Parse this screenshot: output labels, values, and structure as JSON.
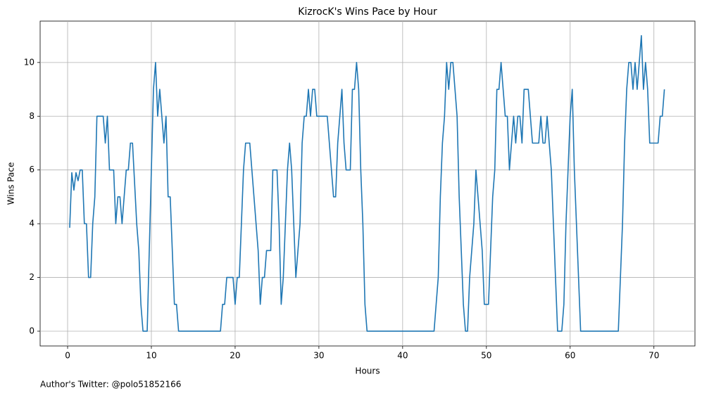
{
  "chart_data": {
    "type": "line",
    "title": "KizrocK's Wins Pace by Hour",
    "x_label": "Hours",
    "y_label": "Wins Pace",
    "caption": "Author's Twitter: @polo51852166",
    "xlim": [
      -3.28,
      74.9
    ],
    "ylim": [
      -0.55,
      11.54
    ],
    "xticks": [
      0,
      10,
      20,
      30,
      40,
      50,
      60,
      70
    ],
    "yticks": [
      0,
      2,
      4,
      6,
      8,
      10
    ],
    "grid": true,
    "series": [
      {
        "color": "#1f77b4",
        "x": [
          0.25,
          0.5,
          0.75,
          1.0,
          1.25,
          1.5,
          1.75,
          2.0,
          2.25,
          2.5,
          2.75,
          3.0,
          3.25,
          3.5,
          4.25,
          4.5,
          4.75,
          5.0,
          5.5,
          5.75,
          6.0,
          6.25,
          6.5,
          6.75,
          7.0,
          7.25,
          7.5,
          7.75,
          8.25,
          8.5,
          8.75,
          9.0,
          9.5,
          9.75,
          10.0,
          10.25,
          10.5,
          10.75,
          11.0,
          11.25,
          11.5,
          11.75,
          12.0,
          12.25,
          12.75,
          13.0,
          13.25,
          18.25,
          18.5,
          18.75,
          19.0,
          19.75,
          20.0,
          20.25,
          20.5,
          20.75,
          21.0,
          21.25,
          21.75,
          22.0,
          22.5,
          22.75,
          23.0,
          23.25,
          23.5,
          23.75,
          24.25,
          24.5,
          25.0,
          25.25,
          25.5,
          25.75,
          26.0,
          26.25,
          26.5,
          26.75,
          27.0,
          27.25,
          27.5,
          27.75,
          28.0,
          28.25,
          28.5,
          28.75,
          29.0,
          29.25,
          29.5,
          29.75,
          31.0,
          31.25,
          31.5,
          31.75,
          32.0,
          32.25,
          32.5,
          32.75,
          33.0,
          33.25,
          33.75,
          34.0,
          34.25,
          34.5,
          34.75,
          35.0,
          35.25,
          35.5,
          35.75,
          43.75,
          44.0,
          44.25,
          44.5,
          44.75,
          45.0,
          45.25,
          45.5,
          45.75,
          46.0,
          46.25,
          46.5,
          46.75,
          47.0,
          47.25,
          47.5,
          47.75,
          48.0,
          48.25,
          48.5,
          48.75,
          49.0,
          49.25,
          49.5,
          49.75,
          50.25,
          50.5,
          50.75,
          51.0,
          51.25,
          51.5,
          51.75,
          52.0,
          52.25,
          52.5,
          52.75,
          53.0,
          53.25,
          53.5,
          53.75,
          54.0,
          54.25,
          54.5,
          55.0,
          55.25,
          55.5,
          56.25,
          56.5,
          56.75,
          57.0,
          57.25,
          57.5,
          57.75,
          58.0,
          58.25,
          58.5,
          59.0,
          59.25,
          59.5,
          59.75,
          60.0,
          60.25,
          60.5,
          60.75,
          61.0,
          61.25,
          65.75,
          66.0,
          66.25,
          66.5,
          66.75,
          67.0,
          67.25,
          67.5,
          67.75,
          68.0,
          68.25,
          68.5,
          68.75,
          69.0,
          69.25,
          69.5,
          70.5,
          70.75,
          71.0,
          71.25
        ],
        "values": [
          3.85,
          5.9,
          5.25,
          5.9,
          5.6,
          6,
          6,
          4,
          4,
          2,
          2,
          4,
          5,
          8,
          8,
          7,
          8,
          6,
          6,
          4,
          5,
          5,
          4,
          5,
          6,
          6,
          7,
          7,
          4,
          3,
          1,
          0,
          0,
          3,
          6,
          9,
          10,
          8,
          9,
          8,
          7,
          8,
          5,
          5,
          1,
          1,
          0,
          0,
          1,
          1,
          2,
          2,
          1,
          2,
          2,
          4,
          6,
          7,
          7,
          6,
          4,
          3,
          1,
          2,
          2,
          3,
          3,
          6,
          6,
          4,
          1,
          2,
          4,
          6,
          7,
          6,
          4,
          2,
          3,
          4,
          7,
          8,
          8,
          9,
          8,
          9,
          9,
          8,
          8,
          7,
          6,
          5,
          5,
          7,
          8,
          9,
          7,
          6,
          6,
          9,
          9,
          10,
          9,
          6,
          4,
          1,
          0,
          0,
          1,
          2,
          5,
          7,
          8,
          10,
          9,
          10,
          10,
          9,
          8,
          5,
          3,
          1,
          0,
          0,
          2,
          3,
          4,
          6,
          5,
          4,
          3,
          1,
          1,
          3,
          5,
          6,
          9,
          9,
          10,
          9,
          8,
          8,
          6,
          7,
          8,
          7,
          8,
          8,
          7,
          9,
          9,
          8,
          7,
          7,
          8,
          7,
          7,
          8,
          7,
          6,
          4,
          2,
          0,
          0,
          1,
          4,
          6,
          8,
          9,
          6,
          4,
          2,
          0,
          0,
          2,
          4,
          7,
          9,
          10,
          10,
          9,
          10,
          9,
          10,
          11,
          9,
          10,
          9,
          7,
          7,
          8,
          8,
          9
        ]
      }
    ]
  }
}
